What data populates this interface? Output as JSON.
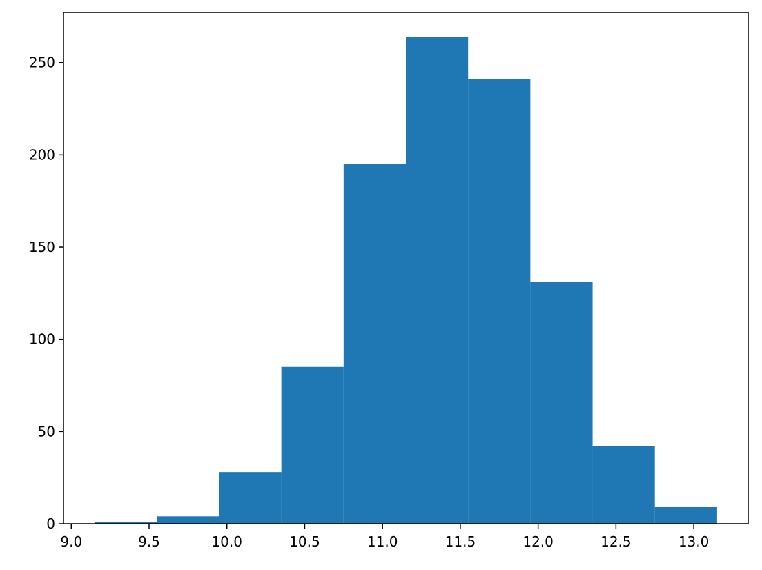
{
  "chart_data": {
    "type": "histogram",
    "bins": [
      9.15,
      9.55,
      9.95,
      10.35,
      10.75,
      11.15,
      11.55,
      11.95,
      12.35,
      12.75,
      13.15
    ],
    "counts": [
      1,
      4,
      28,
      85,
      195,
      264,
      241,
      131,
      42,
      9
    ],
    "color": "#1f77b4",
    "xlim": [
      8.95,
      13.35
    ],
    "xticks": [
      {
        "value": 9.0,
        "label": "9.0"
      },
      9.5,
      {
        "value": 10.0,
        "label": "10.0"
      },
      10.5,
      {
        "value": 11.0,
        "label": "11.0"
      },
      11.5,
      {
        "value": 12.0,
        "label": "12.0"
      },
      12.5,
      {
        "value": 13.0,
        "label": "13.0"
      }
    ],
    "ylim": [
      0,
      277.2
    ],
    "yticks": [
      0,
      50,
      100,
      150,
      200,
      250
    ],
    "grid": false
  }
}
